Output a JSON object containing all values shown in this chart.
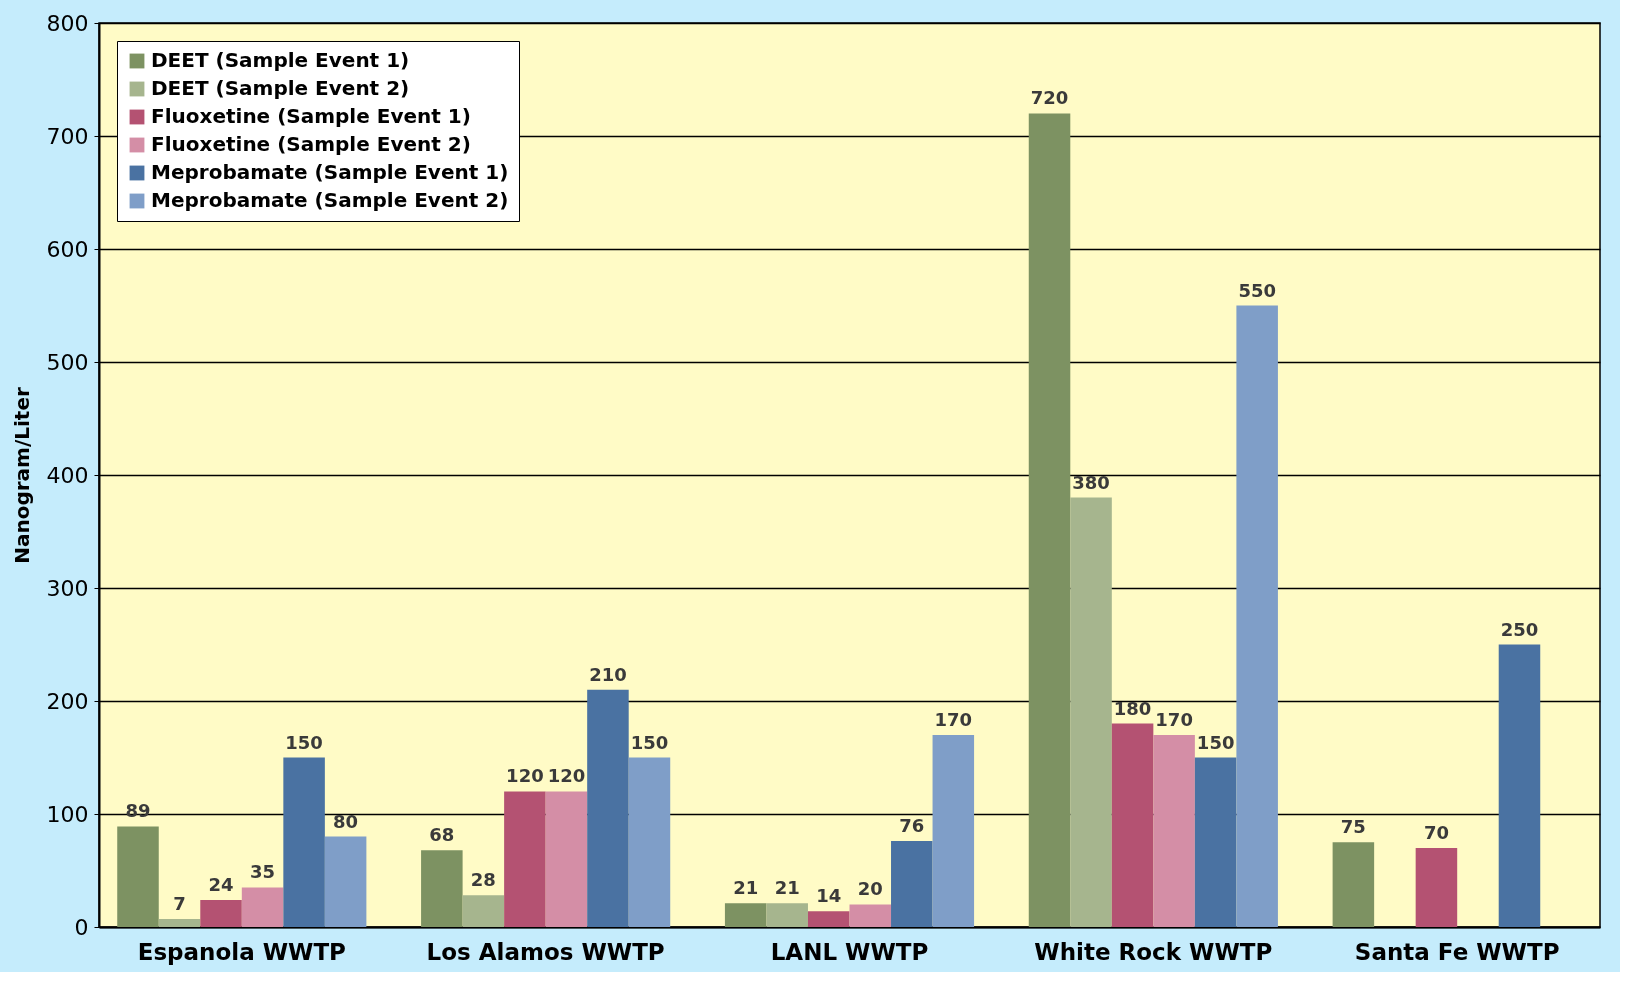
{
  "chart_data": {
    "type": "bar",
    "categories": [
      "Espanola WWTP",
      "Los Alamos WWTP",
      "LANL WWTP",
      "White Rock WWTP",
      "Santa Fe WWTP"
    ],
    "ylabel": "Nanogram/Liter",
    "ylim": [
      0,
      800
    ],
    "yticks": [
      0,
      100,
      200,
      300,
      400,
      500,
      600,
      700,
      800
    ],
    "grid": "y",
    "legend": "top left",
    "data_labels": true,
    "series": [
      {
        "name": "DEET (Sample Event 1)",
        "color": "#7d9262",
        "values": [
          89,
          68,
          21,
          720,
          75
        ]
      },
      {
        "name": "DEET (Sample Event 2)",
        "color": "#a6b58e",
        "values": [
          7,
          28,
          21,
          380,
          null
        ]
      },
      {
        "name": "Fluoxetine (Sample Event 1)",
        "color": "#b45272",
        "values": [
          24,
          120,
          14,
          180,
          70
        ]
      },
      {
        "name": "Fluoxetine (Sample Event 2)",
        "color": "#d48ea6",
        "values": [
          35,
          120,
          20,
          170,
          null
        ]
      },
      {
        "name": "Meprobamate (Sample Event 1)",
        "color": "#4a72a2",
        "values": [
          150,
          210,
          76,
          150,
          250
        ]
      },
      {
        "name": "Meprobamate (Sample Event 2)",
        "color": "#7f9ec8",
        "values": [
          80,
          150,
          170,
          550,
          null
        ]
      }
    ]
  }
}
